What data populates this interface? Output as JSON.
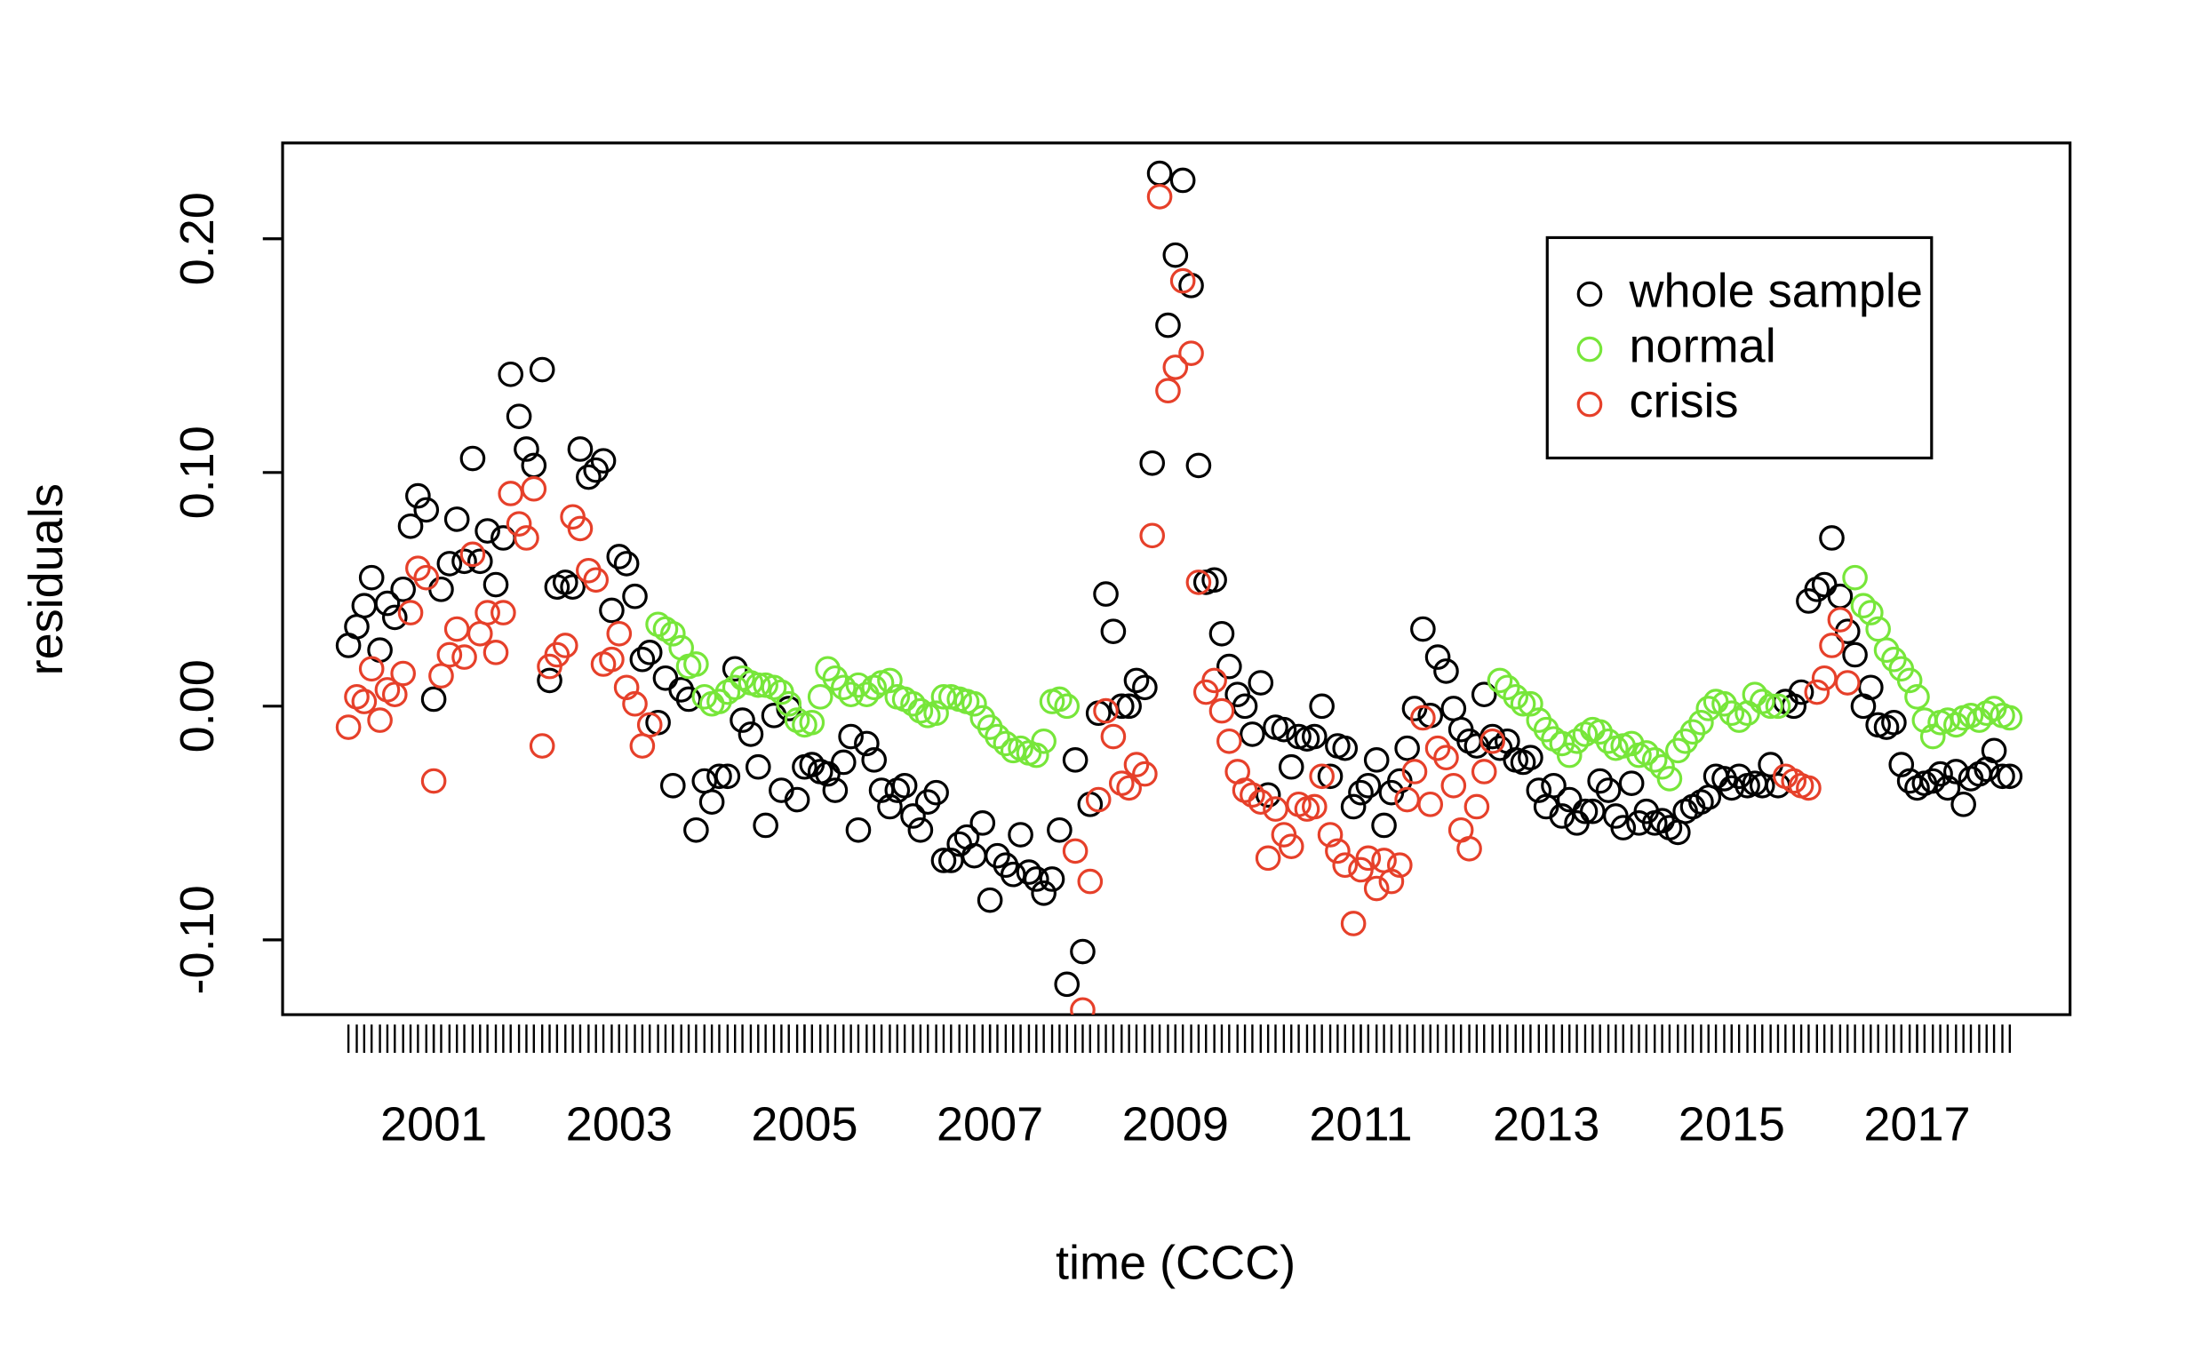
{
  "chart_data": {
    "type": "scatter",
    "xlabel": "time (CCC)",
    "ylabel": "residuals",
    "xlim": [
      1999.37,
      2018.65
    ],
    "ylim": [
      -0.132,
      0.241
    ],
    "xticks": [
      2001,
      2003,
      2005,
      2007,
      2009,
      2011,
      2013,
      2015,
      2017
    ],
    "yticks": [
      {
        "value": -0.1,
        "label": "-0.10"
      },
      {
        "value": 0,
        "label": "0.00"
      },
      {
        "value": 0.1,
        "label": "0.10"
      },
      {
        "value": 0.2,
        "label": "0.20"
      }
    ],
    "legend": "topright",
    "x": [
      2000.08,
      2000.17,
      2000.25,
      2000.33,
      2000.42,
      2000.5,
      2000.58,
      2000.67,
      2000.75,
      2000.83,
      2000.92,
      2001,
      2001.08,
      2001.17,
      2001.25,
      2001.33,
      2001.42,
      2001.5,
      2001.58,
      2001.67,
      2001.75,
      2001.83,
      2001.92,
      2002,
      2002.08,
      2002.17,
      2002.25,
      2002.33,
      2002.42,
      2002.5,
      2002.58,
      2002.67,
      2002.75,
      2002.83,
      2002.92,
      2003,
      2003.08,
      2003.17,
      2003.25,
      2003.33,
      2003.42,
      2003.5,
      2003.58,
      2003.67,
      2003.75,
      2003.83,
      2003.92,
      2004,
      2004.08,
      2004.17,
      2004.25,
      2004.33,
      2004.42,
      2004.5,
      2004.58,
      2004.67,
      2004.75,
      2004.83,
      2004.92,
      2005,
      2005.08,
      2005.17,
      2005.25,
      2005.33,
      2005.42,
      2005.5,
      2005.58,
      2005.67,
      2005.75,
      2005.83,
      2005.92,
      2006,
      2006.08,
      2006.17,
      2006.25,
      2006.33,
      2006.42,
      2006.5,
      2006.58,
      2006.67,
      2006.75,
      2006.83,
      2006.92,
      2007,
      2007.08,
      2007.17,
      2007.25,
      2007.33,
      2007.42,
      2007.5,
      2007.58,
      2007.67,
      2007.75,
      2007.83,
      2007.92,
      2008,
      2008.08,
      2008.17,
      2008.25,
      2008.33,
      2008.42,
      2008.5,
      2008.58,
      2008.67,
      2008.75,
      2008.83,
      2008.92,
      2009,
      2009.08,
      2009.17,
      2009.25,
      2009.33,
      2009.42,
      2009.5,
      2009.58,
      2009.67,
      2009.75,
      2009.83,
      2009.92,
      2010,
      2010.08,
      2010.17,
      2010.25,
      2010.33,
      2010.42,
      2010.5,
      2010.58,
      2010.67,
      2010.75,
      2010.83,
      2010.92,
      2011,
      2011.08,
      2011.17,
      2011.25,
      2011.33,
      2011.42,
      2011.5,
      2011.58,
      2011.67,
      2011.75,
      2011.83,
      2011.92,
      2012,
      2012.08,
      2012.17,
      2012.25,
      2012.33,
      2012.42,
      2012.5,
      2012.58,
      2012.67,
      2012.75,
      2012.83,
      2012.92,
      2013,
      2013.08,
      2013.17,
      2013.25,
      2013.33,
      2013.42,
      2013.5,
      2013.58,
      2013.67,
      2013.75,
      2013.83,
      2013.92,
      2014,
      2014.08,
      2014.17,
      2014.25,
      2014.33,
      2014.42,
      2014.5,
      2014.58,
      2014.67,
      2014.75,
      2014.83,
      2014.92,
      2015,
      2015.08,
      2015.17,
      2015.25,
      2015.33,
      2015.42,
      2015.5,
      2015.58,
      2015.67,
      2015.75,
      2015.83,
      2015.92,
      2016,
      2016.08,
      2016.17,
      2016.25,
      2016.33,
      2016.42,
      2016.5,
      2016.58,
      2016.67,
      2016.75,
      2016.83,
      2016.92,
      2017,
      2017.08,
      2017.17,
      2017.25,
      2017.33,
      2017.42,
      2017.5,
      2017.58,
      2017.67,
      2017.75,
      2017.83,
      2017.92,
      2018
    ],
    "series": [
      {
        "name": "whole sample",
        "color": "#000000",
        "values": [
          0.026,
          0.034,
          0.043,
          0.055,
          0.024,
          0.044,
          0.038,
          0.05,
          0.077,
          0.09,
          0.084,
          0.003,
          0.05,
          0.061,
          0.08,
          0.062,
          0.106,
          0.062,
          0.075,
          0.052,
          0.072,
          0.142,
          0.124,
          0.11,
          0.103,
          0.144,
          0.011,
          0.051,
          0.053,
          0.051,
          0.11,
          0.098,
          0.101,
          0.105,
          0.041,
          0.064,
          0.061,
          0.047,
          0.02,
          0.023,
          -0.007,
          0.012,
          -0.034,
          0.007,
          0.003,
          -0.053,
          -0.032,
          -0.041,
          -0.03,
          -0.03,
          0.016,
          -0.006,
          -0.012,
          -0.026,
          -0.051,
          -0.004,
          -0.036,
          -0.001,
          -0.04,
          -0.026,
          -0.025,
          -0.028,
          -0.029,
          -0.036,
          -0.024,
          -0.013,
          -0.053,
          -0.016,
          -0.023,
          -0.036,
          -0.043,
          -0.036,
          -0.034,
          -0.047,
          -0.053,
          -0.041,
          -0.037,
          -0.066,
          -0.066,
          -0.059,
          -0.056,
          -0.064,
          -0.05,
          -0.083,
          -0.064,
          -0.068,
          -0.072,
          -0.055,
          -0.071,
          -0.074,
          -0.08,
          -0.074,
          -0.053,
          -0.119,
          -0.023,
          -0.105,
          -0.042,
          -0.003,
          0.048,
          0.032,
          0.0,
          0.0,
          0.011,
          0.008,
          0.104,
          0.228,
          0.163,
          0.193,
          0.225,
          0.18,
          0.103,
          0.053,
          0.054,
          0.031,
          0.017,
          0.005,
          0.0,
          -0.012,
          0.01,
          -0.038,
          -0.009,
          -0.01,
          -0.026,
          -0.013,
          -0.014,
          -0.013,
          0.0,
          -0.03,
          -0.017,
          -0.018,
          -0.043,
          -0.037,
          -0.034,
          -0.023,
          -0.051,
          -0.037,
          -0.032,
          -0.018,
          -0.001,
          0.033,
          -0.004,
          0.021,
          0.015,
          -0.001,
          -0.01,
          -0.015,
          -0.017,
          0.005,
          -0.013,
          -0.018,
          -0.015,
          -0.023,
          -0.024,
          -0.022,
          -0.036,
          -0.043,
          -0.034,
          -0.047,
          -0.04,
          -0.05,
          -0.045,
          -0.045,
          -0.032,
          -0.036,
          -0.047,
          -0.052,
          -0.033,
          -0.05,
          -0.045,
          -0.05,
          -0.049,
          -0.052,
          -0.054,
          -0.045,
          -0.043,
          -0.041,
          -0.039,
          -0.03,
          -0.031,
          -0.035,
          -0.03,
          -0.034,
          -0.033,
          -0.034,
          -0.025,
          -0.034,
          0.002,
          0.0,
          0.006,
          0.045,
          0.05,
          0.052,
          0.072,
          0.047,
          0.032,
          0.022,
          0.0,
          0.008,
          -0.008,
          -0.009,
          -0.007,
          -0.025,
          -0.032,
          -0.035,
          -0.033,
          -0.032,
          -0.029,
          -0.035,
          -0.028,
          -0.042,
          -0.031,
          -0.029,
          -0.027,
          -0.019,
          -0.03,
          -0.03
        ]
      },
      {
        "name": "normal",
        "color": "#77e63a",
        "values": [
          null,
          null,
          null,
          null,
          null,
          null,
          null,
          null,
          null,
          null,
          null,
          null,
          null,
          null,
          null,
          null,
          null,
          null,
          null,
          null,
          null,
          null,
          null,
          null,
          null,
          null,
          null,
          null,
          null,
          null,
          null,
          null,
          null,
          null,
          null,
          null,
          null,
          null,
          null,
          null,
          0.035,
          0.033,
          0.031,
          0.025,
          0.017,
          0.018,
          0.004,
          0.001,
          0.002,
          0.006,
          0.008,
          0.012,
          0.01,
          0.009,
          0.009,
          0.008,
          0.006,
          0.001,
          -0.006,
          -0.008,
          -0.007,
          0.004,
          0.016,
          0.012,
          0.008,
          0.005,
          0.009,
          0.005,
          0.008,
          0.01,
          0.011,
          0.004,
          0.003,
          0.001,
          -0.002,
          -0.004,
          -0.003,
          0.004,
          0.004,
          0.003,
          0.002,
          0.001,
          -0.005,
          -0.009,
          -0.013,
          -0.016,
          -0.019,
          -0.018,
          -0.02,
          -0.021,
          -0.015,
          0.002,
          0.003,
          0.0,
          null,
          null,
          null,
          null,
          null,
          null,
          null,
          null,
          null,
          null,
          null,
          null,
          null,
          null,
          null,
          null,
          null,
          null,
          null,
          null,
          null,
          null,
          null,
          null,
          null,
          null,
          null,
          null,
          null,
          null,
          null,
          null,
          null,
          null,
          null,
          null,
          null,
          null,
          null,
          null,
          null,
          null,
          null,
          null,
          null,
          null,
          null,
          null,
          null,
          null,
          null,
          null,
          null,
          null,
          null,
          0.011,
          0.008,
          0.004,
          0.001,
          0.001,
          -0.006,
          -0.01,
          -0.014,
          -0.016,
          -0.021,
          -0.015,
          -0.012,
          -0.01,
          -0.011,
          -0.015,
          -0.018,
          -0.017,
          -0.016,
          -0.021,
          -0.02,
          -0.023,
          -0.026,
          -0.031,
          -0.019,
          -0.015,
          -0.011,
          -0.007,
          -0.001,
          0.002,
          0.001,
          -0.003,
          -0.006,
          -0.003,
          0.005,
          0.002,
          0.0,
          0.0,
          null,
          null,
          null,
          null,
          null,
          null,
          null,
          null,
          null,
          0.055,
          0.043,
          0.04,
          0.033,
          0.024,
          0.02,
          0.016,
          0.011,
          0.004,
          -0.006,
          -0.013,
          -0.007,
          -0.006,
          -0.008,
          -0.005,
          -0.004,
          -0.006,
          -0.003,
          -0.001,
          -0.004,
          -0.005
        ]
      },
      {
        "name": "crisis",
        "color": "#e6402a",
        "values": [
          -0.009,
          0.004,
          0.002,
          0.016,
          -0.006,
          0.007,
          0.005,
          0.014,
          0.04,
          0.059,
          0.055,
          -0.032,
          0.013,
          0.022,
          0.033,
          0.021,
          0.065,
          0.031,
          0.04,
          0.023,
          0.04,
          0.091,
          0.078,
          0.072,
          0.093,
          -0.017,
          0.017,
          0.022,
          0.026,
          0.081,
          0.076,
          0.058,
          0.054,
          0.018,
          0.02,
          0.031,
          0.008,
          0.001,
          -0.017,
          -0.008,
          null,
          null,
          null,
          null,
          null,
          null,
          null,
          null,
          null,
          null,
          null,
          null,
          null,
          null,
          null,
          null,
          null,
          null,
          null,
          null,
          null,
          null,
          null,
          null,
          null,
          null,
          null,
          null,
          null,
          null,
          null,
          null,
          null,
          null,
          null,
          null,
          null,
          null,
          null,
          null,
          null,
          null,
          null,
          null,
          null,
          null,
          null,
          null,
          null,
          null,
          null,
          null,
          null,
          null,
          -0.062,
          -0.13,
          -0.075,
          -0.04,
          -0.002,
          -0.013,
          -0.033,
          -0.035,
          -0.025,
          -0.029,
          0.073,
          0.218,
          0.135,
          0.145,
          0.182,
          0.151,
          0.053,
          0.006,
          0.011,
          -0.002,
          -0.015,
          -0.028,
          -0.036,
          -0.038,
          -0.041,
          -0.065,
          -0.044,
          -0.055,
          -0.06,
          -0.042,
          -0.044,
          -0.043,
          -0.03,
          -0.055,
          -0.062,
          -0.068,
          -0.093,
          -0.07,
          -0.065,
          -0.078,
          -0.066,
          -0.075,
          -0.068,
          -0.04,
          -0.028,
          -0.005,
          -0.042,
          -0.018,
          -0.022,
          -0.034,
          -0.053,
          -0.061,
          -0.043,
          -0.028,
          -0.015,
          null,
          null,
          null,
          null,
          null,
          null,
          null,
          null,
          null,
          null,
          null,
          null,
          null,
          null,
          null,
          null,
          null,
          null,
          null,
          null,
          null,
          null,
          null,
          null,
          null,
          null,
          null,
          null,
          null,
          null,
          null,
          null,
          null,
          null,
          null,
          null,
          null,
          -0.03,
          -0.032,
          -0.034,
          -0.035,
          0.006,
          0.012,
          0.026,
          0.037,
          0.01,
          null,
          null,
          null,
          null,
          null,
          null,
          null,
          null,
          null,
          null,
          null,
          null,
          null,
          null,
          null,
          null,
          null,
          null,
          null,
          null,
          null
        ]
      }
    ]
  }
}
